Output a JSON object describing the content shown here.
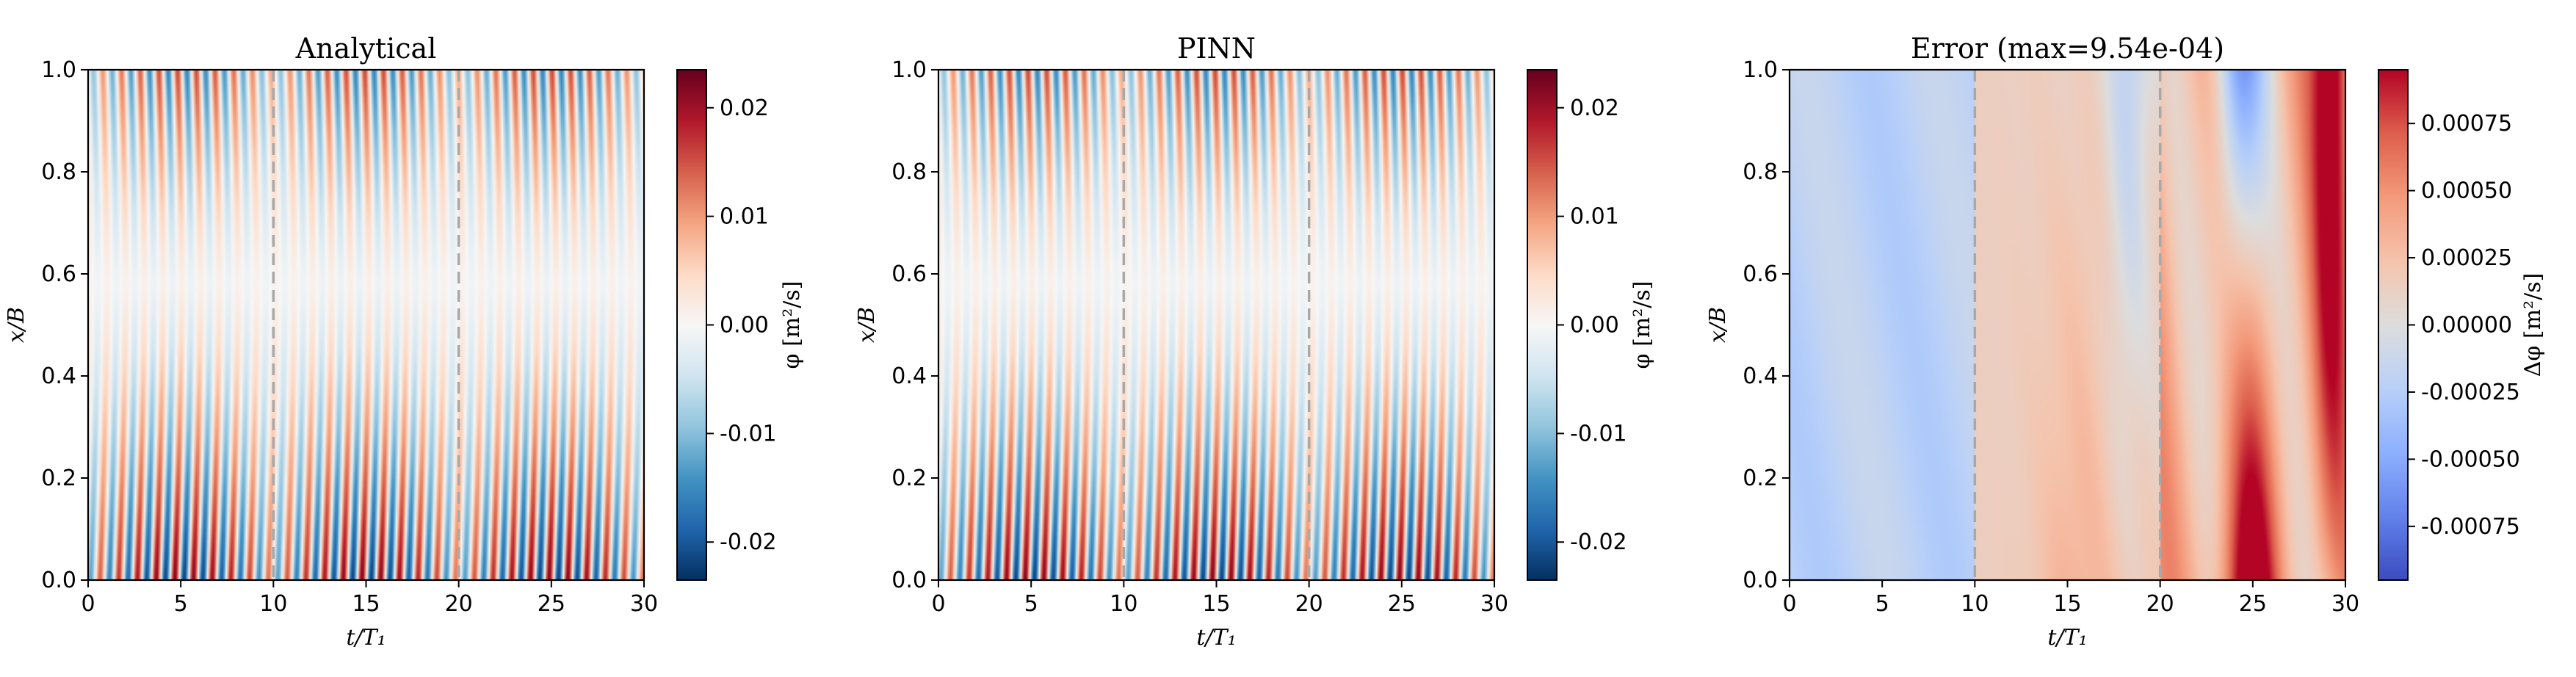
{
  "chart_data": [
    {
      "type": "heatmap",
      "title": "Analytical",
      "xlabel": "t/T₁",
      "ylabel": "x/B",
      "xlim": [
        0,
        30
      ],
      "ylim": [
        0,
        1
      ],
      "xticks": [
        "0",
        "5",
        "10",
        "15",
        "20",
        "25",
        "30"
      ],
      "yticks": [
        "0.0",
        "0.2",
        "0.4",
        "0.6",
        "0.8",
        "1.0"
      ],
      "dashed_vlines": [
        10,
        20
      ],
      "colormap": "RdBu_r",
      "colorbar": {
        "label": "φ [m²/s]",
        "range": [
          -0.0235,
          0.0235
        ],
        "ticks": [
          -0.02,
          -0.01,
          0.0,
          0.01,
          0.02
        ],
        "ticklabels": [
          "-0.02",
          "-0.01",
          "0.00",
          "0.01",
          "0.02"
        ]
      },
      "field": {
        "kind": "oscillation",
        "amplitude": 0.0225,
        "min_envelope": 0.06,
        "node_position": 0.58
      }
    },
    {
      "type": "heatmap",
      "title": "PINN",
      "xlabel": "t/T₁",
      "ylabel": "x/B",
      "xlim": [
        0,
        30
      ],
      "ylim": [
        0,
        1
      ],
      "xticks": [
        "0",
        "5",
        "10",
        "15",
        "20",
        "25",
        "30"
      ],
      "yticks": [
        "0.0",
        "0.2",
        "0.4",
        "0.6",
        "0.8",
        "1.0"
      ],
      "dashed_vlines": [
        10,
        20
      ],
      "colormap": "RdBu_r",
      "colorbar": {
        "label": "φ [m²/s]",
        "range": [
          -0.0235,
          0.0235
        ],
        "ticks": [
          -0.02,
          -0.01,
          0.0,
          0.01,
          0.02
        ],
        "ticklabels": [
          "-0.02",
          "-0.01",
          "0.00",
          "0.01",
          "0.02"
        ]
      },
      "field": {
        "kind": "oscillation",
        "amplitude": 0.0225,
        "min_envelope": 0.06,
        "node_position": 0.58
      }
    },
    {
      "type": "heatmap",
      "title": "Error (max=9.54e-04)",
      "xlabel": "t/T₁",
      "ylabel": "x/B",
      "xlim": [
        0,
        30
      ],
      "ylim": [
        0,
        1
      ],
      "xticks": [
        "0",
        "5",
        "10",
        "15",
        "20",
        "25",
        "30"
      ],
      "yticks": [
        "0.0",
        "0.2",
        "0.4",
        "0.6",
        "0.8",
        "1.0"
      ],
      "dashed_vlines": [
        10,
        20
      ],
      "colormap": "coolwarm",
      "colorbar": {
        "label": "Δφ [m²/s]",
        "range": [
          -0.00095,
          0.00095
        ],
        "ticks": [
          -0.00075,
          -0.0005,
          -0.00025,
          0.0,
          0.00025,
          0.0005,
          0.00075
        ],
        "ticklabels": [
          "-0.00075",
          "-0.00050",
          "-0.00025",
          "0.00000",
          "0.00025",
          "0.00050",
          "0.00075"
        ]
      },
      "field": {
        "kind": "error",
        "max_abs": 0.000954
      }
    }
  ]
}
